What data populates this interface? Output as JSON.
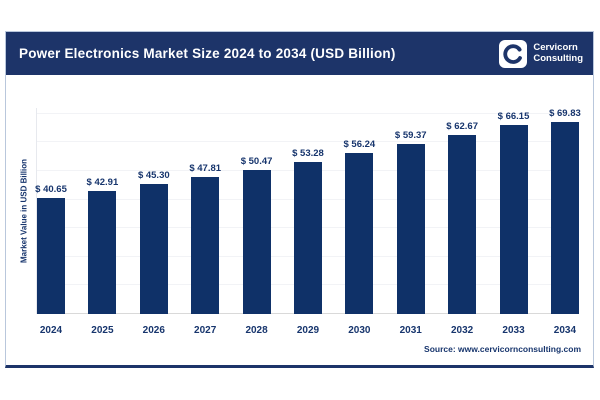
{
  "header": {
    "title": "Power Electronics Market Size 2024 to 2034 (USD Billion)"
  },
  "logo": {
    "line1": "Cervicorn",
    "line2": "Consulting"
  },
  "chart_data": {
    "type": "bar",
    "title": "Power Electronics Market Size 2024 to 2034 (USD Billion)",
    "categories": [
      "2024",
      "2025",
      "2026",
      "2027",
      "2028",
      "2029",
      "2030",
      "2031",
      "2032",
      "2033",
      "2034"
    ],
    "values": [
      40.65,
      42.91,
      45.3,
      47.81,
      50.47,
      53.28,
      56.24,
      59.37,
      62.67,
      66.15,
      69.83
    ],
    "value_prefix": "$ ",
    "xlabel": "",
    "ylabel": "Market Value in USD Billion",
    "ylim": [
      0,
      72
    ],
    "gridline_values": [
      10,
      20,
      30,
      40,
      50,
      60,
      70
    ],
    "grid": "horizontal",
    "legend": "none",
    "bar_color": "#0f3168"
  },
  "footer": {
    "source": "Source: www.cervicornconsulting.com"
  },
  "colors": {
    "header_bg": "#1d3469",
    "bar": "#0f3168",
    "text_navy": "#17356d",
    "border": "#b9c7dc",
    "gridline": "#f2f3f6",
    "baseline": "#d9d9d9"
  }
}
